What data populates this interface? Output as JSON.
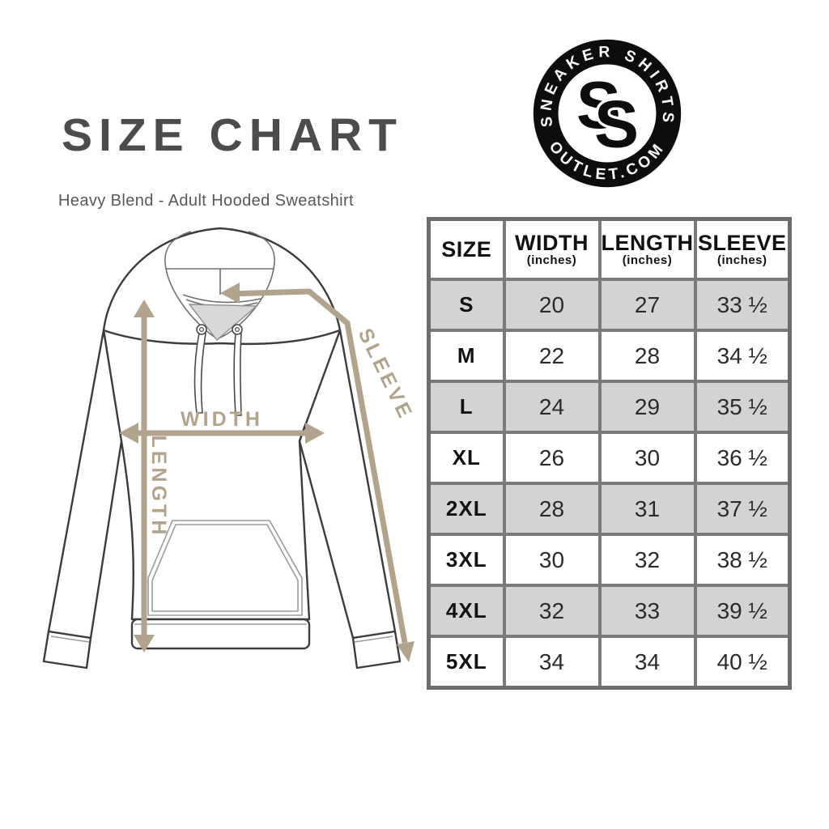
{
  "header": {
    "title": "SIZE CHART",
    "subtitle": "Heavy Blend - Adult Hooded Sweatshirt"
  },
  "logo": {
    "top_text": "SNEAKER SHIRTS",
    "bottom_text": "OUTLET.COM",
    "monogram_back": "S",
    "monogram_front": "S"
  },
  "diagram": {
    "labels": {
      "width": "WIDTH",
      "length": "LENGTH",
      "sleeve": "SLEEVE"
    }
  },
  "size_table": {
    "columns": [
      {
        "label": "SIZE",
        "sub": ""
      },
      {
        "label": "WIDTH",
        "sub": "(inches)"
      },
      {
        "label": "LENGTH",
        "sub": "(inches)"
      },
      {
        "label": "SLEEVE",
        "sub": "(inches)"
      }
    ],
    "row_keys": [
      "size",
      "width",
      "length",
      "sleeve"
    ],
    "rows": [
      {
        "size": "S",
        "width": "20",
        "length": "27",
        "sleeve": "33 ½",
        "shaded": true
      },
      {
        "size": "M",
        "width": "22",
        "length": "28",
        "sleeve": "34 ½",
        "shaded": false
      },
      {
        "size": "L",
        "width": "24",
        "length": "29",
        "sleeve": "35 ½",
        "shaded": true
      },
      {
        "size": "XL",
        "width": "26",
        "length": "30",
        "sleeve": "36 ½",
        "shaded": false
      },
      {
        "size": "2XL",
        "width": "28",
        "length": "31",
        "sleeve": "37 ½",
        "shaded": true
      },
      {
        "size": "3XL",
        "width": "30",
        "length": "32",
        "sleeve": "38 ½",
        "shaded": false
      },
      {
        "size": "4XL",
        "width": "32",
        "length": "33",
        "sleeve": "39 ½",
        "shaded": true
      },
      {
        "size": "5XL",
        "width": "34",
        "length": "34",
        "sleeve": "40 ½",
        "shaded": false
      }
    ]
  },
  "colors": {
    "arrow_tan": "#b2a48c",
    "table_border": "#7a7a7a",
    "table_outer_border": "#6d6d6d",
    "row_shade": "#d3d3d3",
    "title": "#4c4c4f",
    "subtitle": "#58585b",
    "badge_ink": "#0d0d0d"
  }
}
